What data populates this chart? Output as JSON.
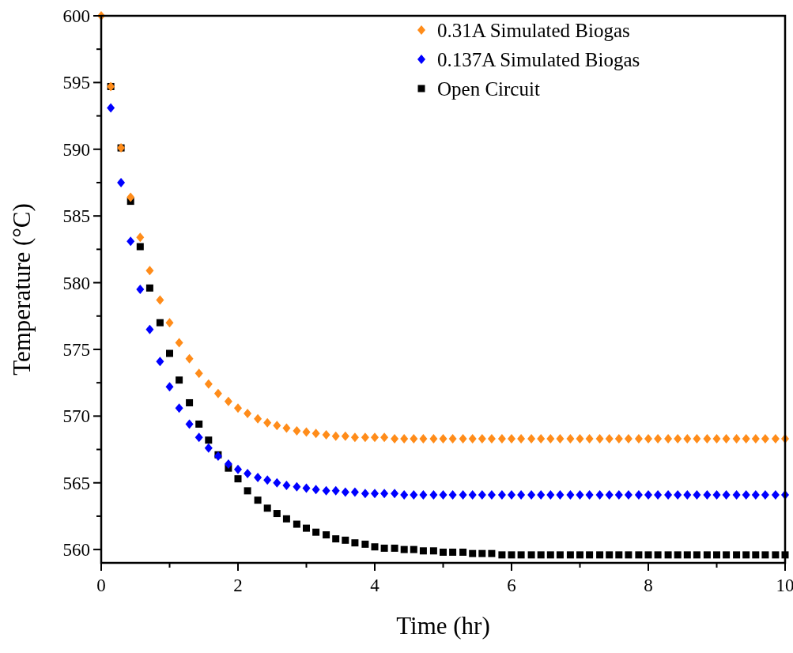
{
  "chart_data": {
    "type": "scatter",
    "xlabel": "Time (hr)",
    "ylabel": "Temperature (°C)",
    "x": [
      0,
      0.14,
      0.29,
      0.43,
      0.57,
      0.71,
      0.86,
      1,
      1.14,
      1.29,
      1.43,
      1.57,
      1.71,
      1.86,
      2,
      2.14,
      2.29,
      2.43,
      2.57,
      2.71,
      2.86,
      3,
      3.14,
      3.29,
      3.43,
      3.57,
      3.71,
      3.86,
      4,
      4.14,
      4.29,
      4.43,
      4.57,
      4.71,
      4.86,
      5,
      5.14,
      5.29,
      5.43,
      5.57,
      5.71,
      5.86,
      6,
      6.14,
      6.29,
      6.43,
      6.57,
      6.71,
      6.86,
      7,
      7.14,
      7.29,
      7.43,
      7.57,
      7.71,
      7.86,
      8,
      8.14,
      8.29,
      8.43,
      8.57,
      8.71,
      8.86,
      9,
      9.14,
      9.29,
      9.43,
      9.57,
      9.71,
      9.86,
      10
    ],
    "series": [
      {
        "name": "0.31A Simulated Biogas",
        "color": "#ff8c1a",
        "marker": "diamond",
        "values": [
          600,
          594.7,
          590.1,
          586.4,
          583.4,
          580.9,
          578.7,
          577,
          575.5,
          574.3,
          573.2,
          572.4,
          571.7,
          571.1,
          570.6,
          570.2,
          569.8,
          569.5,
          569.3,
          569.1,
          568.9,
          568.8,
          568.7,
          568.6,
          568.5,
          568.5,
          568.4,
          568.4,
          568.4,
          568.4,
          568.3,
          568.3,
          568.3,
          568.3,
          568.3,
          568.3,
          568.3,
          568.3,
          568.3,
          568.3,
          568.3,
          568.3,
          568.3,
          568.3,
          568.3,
          568.3,
          568.3,
          568.3,
          568.3,
          568.3,
          568.3,
          568.3,
          568.3,
          568.3,
          568.3,
          568.3,
          568.3,
          568.3,
          568.3,
          568.3,
          568.3,
          568.3,
          568.3,
          568.3,
          568.3,
          568.3,
          568.3,
          568.3,
          568.3,
          568.3,
          568.3
        ]
      },
      {
        "name": "0.137A Simulated Biogas",
        "color": "#0000ff",
        "marker": "diamond",
        "values": [
          null,
          593.1,
          587.5,
          583.1,
          579.5,
          576.5,
          574.1,
          572.2,
          570.6,
          569.4,
          568.4,
          567.6,
          567,
          566.4,
          566,
          565.7,
          565.4,
          565.2,
          565,
          564.8,
          564.7,
          564.6,
          564.5,
          564.4,
          564.4,
          564.3,
          564.3,
          564.2,
          564.2,
          564.2,
          564.2,
          564.1,
          564.1,
          564.1,
          564.1,
          564.1,
          564.1,
          564.1,
          564.1,
          564.1,
          564.1,
          564.1,
          564.1,
          564.1,
          564.1,
          564.1,
          564.1,
          564.1,
          564.1,
          564.1,
          564.1,
          564.1,
          564.1,
          564.1,
          564.1,
          564.1,
          564.1,
          564.1,
          564.1,
          564.1,
          564.1,
          564.1,
          564.1,
          564.1,
          564.1,
          564.1,
          564.1,
          564.1,
          564.1,
          564.1,
          564.1
        ]
      },
      {
        "name": "Open Circuit",
        "color": "#000000",
        "marker": "square",
        "values": [
          null,
          594.7,
          590.1,
          586.1,
          582.7,
          579.6,
          577,
          574.7,
          572.7,
          571,
          569.4,
          568.2,
          567.1,
          566.1,
          565.3,
          564.4,
          563.7,
          563.1,
          562.7,
          562.3,
          561.9,
          561.6,
          561.3,
          561.1,
          560.8,
          560.7,
          560.5,
          560.4,
          560.2,
          560.1,
          560.1,
          560,
          560,
          559.9,
          559.9,
          559.8,
          559.8,
          559.8,
          559.7,
          559.7,
          559.7,
          559.6,
          559.6,
          559.6,
          559.6,
          559.6,
          559.6,
          559.6,
          559.6,
          559.6,
          559.6,
          559.6,
          559.6,
          559.6,
          559.6,
          559.6,
          559.6,
          559.6,
          559.6,
          559.6,
          559.6,
          559.6,
          559.6,
          559.6,
          559.6,
          559.6,
          559.6,
          559.6,
          559.6,
          559.6,
          559.6
        ]
      }
    ],
    "xlim": [
      0,
      10
    ],
    "xticks": [
      0,
      {
        "value": 1,
        "label": null
      },
      2,
      {
        "value": 3,
        "label": null
      },
      4,
      {
        "value": 5,
        "label": null
      },
      6,
      {
        "value": 7,
        "label": null
      },
      8,
      {
        "value": 9,
        "label": null
      },
      10
    ],
    "ylim": [
      559,
      600
    ],
    "yticks": [
      560,
      {
        "value": 562.5,
        "label": null
      },
      565,
      {
        "value": 567.5,
        "label": null
      },
      570,
      {
        "value": 572.5,
        "label": null
      },
      575,
      {
        "value": 577.5,
        "label": null
      },
      580,
      {
        "value": 582.5,
        "label": null
      },
      585,
      {
        "value": 587.5,
        "label": null
      },
      590,
      {
        "value": 592.5,
        "label": null
      },
      595,
      {
        "value": 597.5,
        "label": null
      },
      600
    ],
    "legend": "top right",
    "grid": false
  }
}
